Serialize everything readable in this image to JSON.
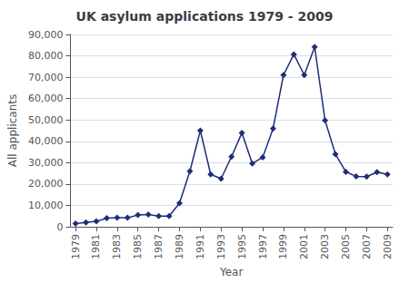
{
  "chart_data": {
    "type": "line",
    "title": "UK asylum applications 1979 - 2009",
    "xlabel": "Year",
    "ylabel": "All applicants",
    "x": [
      1979,
      1980,
      1981,
      1982,
      1983,
      1984,
      1985,
      1986,
      1987,
      1988,
      1989,
      1990,
      1991,
      1992,
      1993,
      1994,
      1995,
      1996,
      1997,
      1998,
      1999,
      2000,
      2001,
      2002,
      2003,
      2004,
      2005,
      2006,
      2007,
      2008,
      2009
    ],
    "values": [
      1500,
      2000,
      2500,
      4000,
      4200,
      4200,
      5500,
      5700,
      5000,
      5000,
      11000,
      26000,
      45000,
      24500,
      22500,
      32800,
      43900,
      29600,
      32500,
      46000,
      71000,
      80700,
      71000,
      84130,
      49750,
      33960,
      25700,
      23600,
      23430,
      25600,
      24500
    ],
    "color": "#1f2d7a",
    "marker": "diamond",
    "xlim": [
      1978.5,
      2009.5
    ],
    "xticks": [
      1979,
      1981,
      1983,
      1985,
      1987,
      1989,
      1991,
      1993,
      1995,
      1997,
      1999,
      2001,
      2003,
      2005,
      2007,
      2009
    ],
    "ylim": [
      0,
      90000
    ],
    "yticks": [
      0,
      {
        "value": 10000,
        "label": "10,000"
      },
      {
        "value": 20000,
        "label": "20,000"
      },
      {
        "value": 30000,
        "label": "30,000"
      },
      {
        "value": 40000,
        "label": "40,000"
      },
      {
        "value": 50000,
        "label": "50,000"
      },
      {
        "value": 60000,
        "label": "60,000"
      },
      {
        "value": 70000,
        "label": "70,000"
      },
      {
        "value": 80000,
        "label": "80,000"
      },
      {
        "value": 90000,
        "label": "90,000"
      }
    ],
    "grid": true
  }
}
